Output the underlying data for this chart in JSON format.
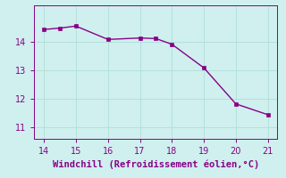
{
  "x": [
    14,
    14.5,
    15,
    16,
    17,
    17.5,
    18,
    19,
    20,
    21
  ],
  "y": [
    14.45,
    14.5,
    14.57,
    14.1,
    14.15,
    14.13,
    13.93,
    13.1,
    11.83,
    11.45
  ],
  "line_color": "#880088",
  "marker_color": "#880088",
  "bg_color": "#cff0ee",
  "grid_color": "#b0ddd8",
  "axis_color": "#880088",
  "tick_color": "#880088",
  "xlabel": "Windchill (Refroidissement éolien,°C)",
  "xlim": [
    13.7,
    21.3
  ],
  "ylim": [
    10.6,
    15.3
  ],
  "xticks": [
    14,
    15,
    16,
    17,
    18,
    19,
    20,
    21
  ],
  "yticks": [
    11,
    12,
    13,
    14
  ],
  "xlabel_fontsize": 7.5,
  "tick_fontsize": 7,
  "line_width": 1.0,
  "marker_size": 2.5
}
